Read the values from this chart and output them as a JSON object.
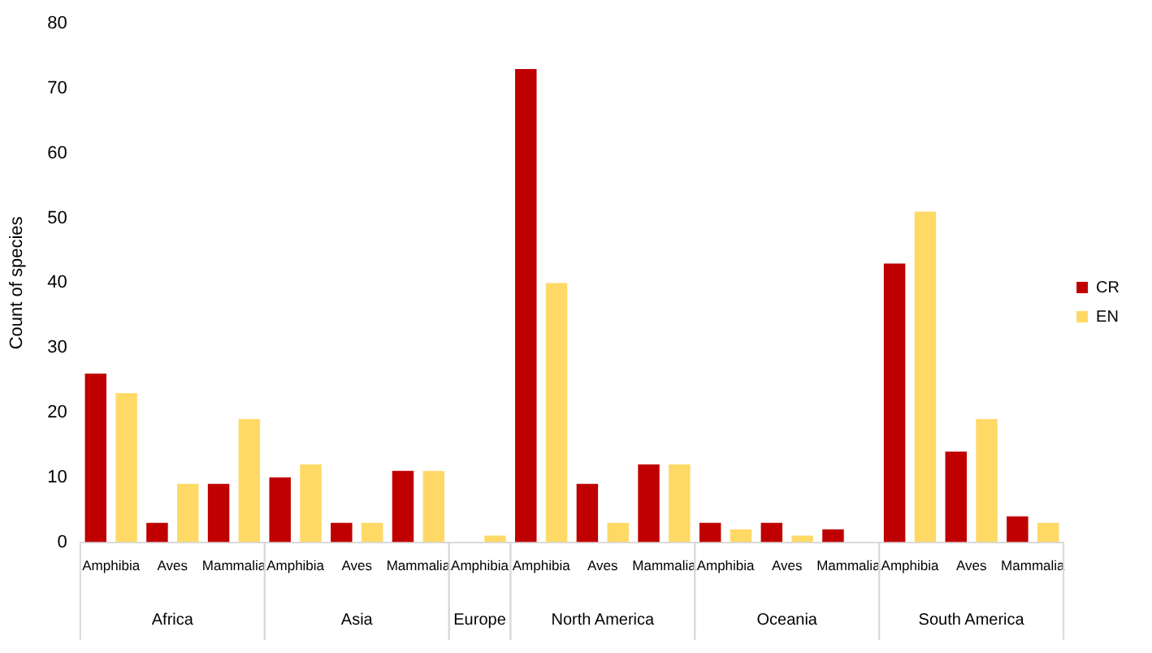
{
  "chart_data": {
    "type": "bar",
    "ylabel": "Count of species",
    "categories": [
      "Amphibia",
      "Aves",
      "Mammalia",
      "Amphibia",
      "Aves",
      "Mammalia",
      "Amphibia",
      "Amphibia",
      "Aves",
      "Mammalia",
      "Amphibia",
      "Aves",
      "Mammalia",
      "Amphibia",
      "Aves",
      "Mammalia"
    ],
    "series": [
      {
        "name": "CR",
        "color": "#c00000",
        "values": [
          26,
          3,
          9,
          10,
          3,
          11,
          0,
          73,
          9,
          12,
          3,
          3,
          2,
          43,
          14,
          4
        ]
      },
      {
        "name": "EN",
        "color": "#ffd966",
        "values": [
          23,
          9,
          19,
          12,
          3,
          11,
          1,
          40,
          3,
          12,
          2,
          1,
          0,
          51,
          19,
          3
        ]
      }
    ],
    "annotations": [
      "Africa",
      "Asia",
      "Europe",
      "North America",
      "Oceania",
      "South America"
    ],
    "ylim": [
      0,
      80
    ],
    "yticks": [
      0,
      10,
      20,
      30,
      40,
      50,
      60,
      70,
      80
    ],
    "grid": false,
    "legend": "right"
  }
}
